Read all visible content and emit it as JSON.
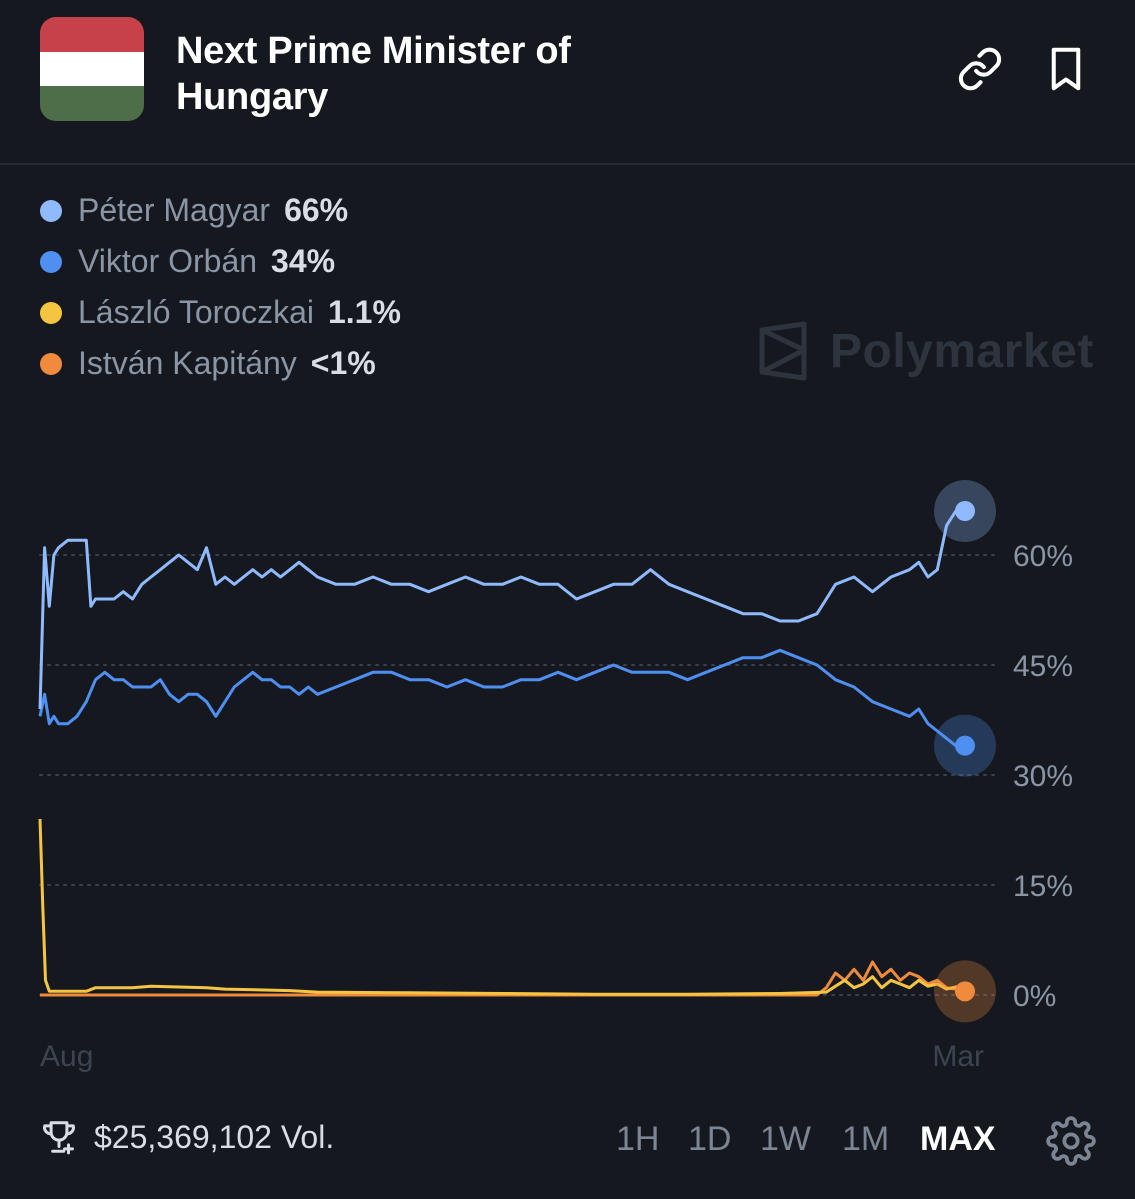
{
  "header": {
    "title": "Next Prime Minister of Hungary",
    "flag_colors": [
      "#c7414b",
      "#ffffff",
      "#4e6e4a"
    ],
    "link_icon": "link-icon",
    "bookmark_icon": "bookmark-icon"
  },
  "legend": [
    {
      "name": "Péter Magyar",
      "value": "66%",
      "color": "#8fbaff"
    },
    {
      "name": "Viktor Orbán",
      "value": "34%",
      "color": "#4f8ff2"
    },
    {
      "name": "László Toroczkai",
      "value": "1.1%",
      "color": "#f5c542"
    },
    {
      "name": "István Kapitány",
      "value": "<1%",
      "color": "#f08a3c"
    }
  ],
  "watermark": "Polymarket",
  "chart_data": {
    "type": "line",
    "x_labels": [
      "Aug",
      "Mar"
    ],
    "y_ticks": [
      "60%",
      "45%",
      "30%",
      "15%",
      "0%"
    ],
    "y_tick_values": [
      60,
      45,
      30,
      15,
      0
    ],
    "ylim": [
      0,
      60
    ],
    "x_range": [
      0,
      100
    ],
    "series": [
      {
        "name": "Péter Magyar",
        "color": "#8fbaff",
        "x": [
          0,
          0.5,
          1,
          1.5,
          2,
          3,
          4,
          5,
          5.5,
          6,
          7,
          8,
          9,
          10,
          11,
          12,
          13,
          14,
          15,
          16,
          17,
          18,
          19,
          20,
          21,
          22,
          23,
          24,
          25,
          26,
          27,
          28,
          29,
          30,
          32,
          34,
          36,
          38,
          40,
          42,
          44,
          46,
          48,
          50,
          52,
          54,
          56,
          58,
          60,
          62,
          64,
          66,
          68,
          70,
          72,
          74,
          76,
          78,
          80,
          82,
          84,
          85,
          86,
          88,
          90,
          92,
          94,
          95,
          96,
          97,
          98,
          99,
          100
        ],
        "y": [
          39,
          61,
          53,
          60,
          61,
          62,
          62,
          62,
          53,
          54,
          54,
          54,
          55,
          54,
          56,
          57,
          58,
          59,
          60,
          59,
          58,
          61,
          56,
          57,
          56,
          57,
          58,
          57,
          58,
          57,
          58,
          59,
          58,
          57,
          56,
          56,
          57,
          56,
          56,
          55,
          56,
          57,
          56,
          56,
          57,
          56,
          56,
          54,
          55,
          56,
          56,
          58,
          56,
          55,
          54,
          53,
          52,
          52,
          51,
          51,
          52,
          54,
          56,
          57,
          55,
          57,
          58,
          59,
          57,
          58,
          64,
          66,
          66
        ]
      },
      {
        "name": "Viktor Orbán",
        "color": "#4f8ff2",
        "x": [
          0,
          0.5,
          1,
          1.5,
          2,
          3,
          4,
          5,
          6,
          7,
          8,
          9,
          10,
          11,
          12,
          13,
          14,
          15,
          16,
          17,
          18,
          19,
          20,
          21,
          22,
          23,
          24,
          25,
          26,
          27,
          28,
          29,
          30,
          32,
          34,
          36,
          38,
          40,
          42,
          44,
          46,
          48,
          50,
          52,
          54,
          56,
          58,
          60,
          62,
          64,
          66,
          68,
          70,
          72,
          74,
          76,
          78,
          80,
          82,
          84,
          85,
          86,
          88,
          90,
          92,
          94,
          95,
          96,
          97,
          98,
          99,
          100
        ],
        "y": [
          38,
          41,
          37,
          38,
          37,
          37,
          38,
          40,
          43,
          44,
          43,
          43,
          42,
          42,
          42,
          43,
          41,
          40,
          41,
          41,
          40,
          38,
          40,
          42,
          43,
          44,
          43,
          43,
          42,
          42,
          41,
          42,
          41,
          42,
          43,
          44,
          44,
          43,
          43,
          42,
          43,
          42,
          42,
          43,
          43,
          44,
          43,
          44,
          45,
          44,
          44,
          44,
          43,
          44,
          45,
          46,
          46,
          47,
          46,
          45,
          44,
          43,
          42,
          40,
          39,
          38,
          39,
          37,
          36,
          35,
          34,
          34
        ]
      },
      {
        "name": "László Toroczkai",
        "color": "#f5c542",
        "x": [
          0,
          0.3,
          0.6,
          1,
          2,
          5,
          6,
          10,
          12,
          18,
          20,
          27,
          30,
          40,
          50,
          60,
          70,
          80,
          85,
          86,
          87,
          88,
          89,
          90,
          91,
          92,
          93,
          94,
          95,
          96,
          97,
          98,
          99,
          100
        ],
        "y": [
          24,
          12,
          2,
          0.5,
          0.5,
          0.5,
          1,
          1,
          1.2,
          1,
          0.8,
          0.6,
          0.4,
          0.3,
          0.2,
          0.1,
          0.1,
          0.2,
          0.4,
          1.2,
          2,
          1,
          1.5,
          2.5,
          1,
          2,
          1.5,
          1,
          2,
          1.2,
          1.5,
          0.8,
          1.1,
          1.1
        ]
      },
      {
        "name": "István Kapitány",
        "color": "#f08a3c",
        "x": [
          0,
          10,
          20,
          30,
          40,
          50,
          60,
          70,
          80,
          84,
          85,
          86,
          87,
          88,
          89,
          90,
          91,
          92,
          93,
          94,
          95,
          96,
          97,
          98,
          99,
          100
        ],
        "y": [
          0,
          0,
          0,
          0,
          0,
          0,
          0,
          0,
          0,
          0,
          1,
          3,
          2,
          3.5,
          2,
          4.5,
          2.5,
          3.5,
          2,
          3,
          2.5,
          1.5,
          2,
          1,
          0.8,
          0.5
        ]
      }
    ]
  },
  "footer": {
    "volume": "$25,369,102 Vol.",
    "trophy_icon": "trophy-icon",
    "timeframes": [
      "1H",
      "1D",
      "1W",
      "1M",
      "MAX"
    ],
    "active_timeframe": "MAX",
    "settings_icon": "gear-icon"
  }
}
